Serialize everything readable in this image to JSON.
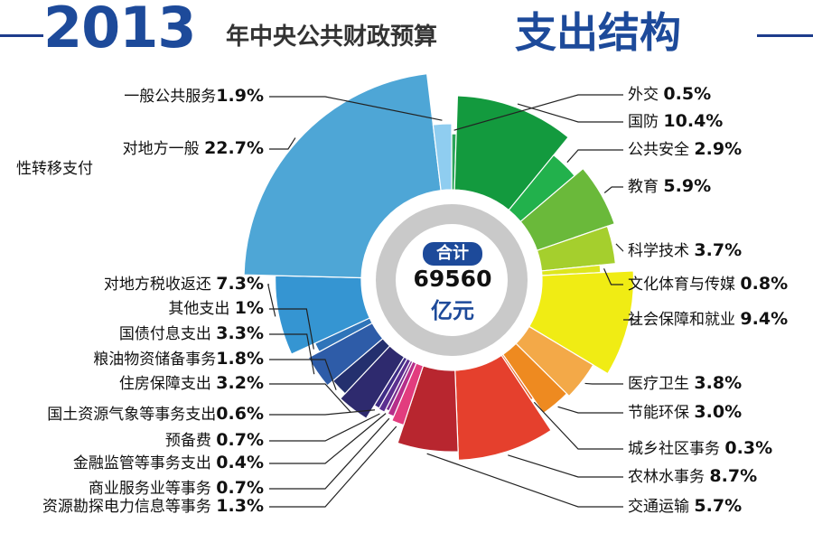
{
  "header": {
    "year": "2013",
    "middle": "年中央公共财政预算",
    "end": "支出结构"
  },
  "center": {
    "badge": "合计",
    "total": "69560",
    "unit": "亿元"
  },
  "chart_data": {
    "type": "pie",
    "title": "2013年中央公共财政预算支出结构",
    "total": "69560",
    "unit": "亿元",
    "slices": [
      {
        "name": "外交",
        "label": "外交",
        "value": 0.5,
        "color": "#2aa55a"
      },
      {
        "name": "国防",
        "label": "国防",
        "value": 10.4,
        "color": "#139a3e"
      },
      {
        "name": "公共安全",
        "label": "公共安全",
        "value": 2.9,
        "color": "#22b14c"
      },
      {
        "name": "教育",
        "label": "教育",
        "value": 5.9,
        "color": "#6ab93a"
      },
      {
        "name": "科学技术",
        "label": "科学技术",
        "value": 3.7,
        "color": "#a5cf2d"
      },
      {
        "name": "文化体育与传媒",
        "label": "文化体育与传媒",
        "value": 0.8,
        "color": "#dde61e"
      },
      {
        "name": "社会保障和就业",
        "label": "社会保障和就业",
        "value": 9.4,
        "color": "#f0ec14"
      },
      {
        "name": "医疗卫生",
        "label": "医疗卫生",
        "value": 3.8,
        "color": "#f3a948"
      },
      {
        "name": "节能环保",
        "label": "节能环保",
        "value": 3.0,
        "color": "#ee8a20"
      },
      {
        "name": "城乡社区事务",
        "label": "城乡社区事务",
        "value": 0.3,
        "color": "#e6672b"
      },
      {
        "name": "农林水事务",
        "label": "农林水事务",
        "value": 8.7,
        "color": "#e5402d"
      },
      {
        "name": "交通运输",
        "label": "交通运输",
        "value": 5.7,
        "color": "#b8262f"
      },
      {
        "name": "资源勘探电力信息等事务",
        "label": "资源勘探电力信息等事务",
        "value": 1.3,
        "color": "#e23c7e"
      },
      {
        "name": "商业服务业等事务",
        "label": "商业服务业等事务",
        "value": 0.7,
        "color": "#b62e8a"
      },
      {
        "name": "金融监管等事务支出",
        "label": "金融监管等事务支出",
        "value": 0.4,
        "color": "#7a2c8f"
      },
      {
        "name": "预备费",
        "label": "预备费",
        "value": 0.7,
        "color": "#5b2f90"
      },
      {
        "name": "国土资源气象等事务支出",
        "label": "国土资源气象等事务支出",
        "value": 0.6,
        "color": "#3f2d86"
      },
      {
        "name": "住房保障支出",
        "label": "住房保障支出",
        "value": 3.2,
        "color": "#2e2a6e"
      },
      {
        "name": "粮油物资储备事务",
        "label": "粮油物资储备事务",
        "value": 1.8,
        "color": "#24306e"
      },
      {
        "name": "国债付息支出",
        "label": "国债付息支出",
        "value": 3.3,
        "color": "#2e5ca8"
      },
      {
        "name": "其他支出",
        "label": "其他支出",
        "value": 1.0,
        "color": "#2f74b9"
      },
      {
        "name": "对地方税收返还",
        "label": "对地方税收返还",
        "value": 7.3,
        "color": "#3595d2"
      },
      {
        "name": "对地方一般性转移支付",
        "label": "对地方一般\n性转移支付",
        "value": 22.7,
        "color": "#4ea6d6"
      },
      {
        "name": "一般公共服务",
        "label": "一般公共服务",
        "value": 1.9,
        "color": "#8fcdf0"
      }
    ],
    "labels": [
      {
        "text": "外交 ",
        "pct": "0.5%"
      },
      {
        "text": "国防 ",
        "pct": "10.4%"
      },
      {
        "text": "公共安全 ",
        "pct": "2.9%"
      },
      {
        "text": "教育 ",
        "pct": "5.9%"
      },
      {
        "text": "科学技术 ",
        "pct": "3.7%"
      },
      {
        "text": "文化体育与传媒 ",
        "pct": "0.8%"
      },
      {
        "text": "社会保障和就业 ",
        "pct": "9.4%"
      },
      {
        "text": "医疗卫生 ",
        "pct": "3.8%"
      },
      {
        "text": "节能环保 ",
        "pct": "3.0%"
      },
      {
        "text": "城乡社区事务 ",
        "pct": "0.3%"
      },
      {
        "text": "农林水事务 ",
        "pct": "8.7%"
      },
      {
        "text": "交通运输 ",
        "pct": "5.7%"
      },
      {
        "text": "资源勘探电力信息等事务 ",
        "pct": "1.3%"
      },
      {
        "text": "商业服务业等事务 ",
        "pct": "0.7%"
      },
      {
        "text": "金融监管等事务支出 ",
        "pct": "0.4%"
      },
      {
        "text": "预备费 ",
        "pct": "0.7%"
      },
      {
        "text": "国土资源气象等事务支出",
        "pct": "0.6%"
      },
      {
        "text": "住房保障支出 ",
        "pct": "3.2%"
      },
      {
        "text": "粮油物资储备事务",
        "pct": "1.8%"
      },
      {
        "text": "国债付息支出 ",
        "pct": "3.3%"
      },
      {
        "text": "其他支出 ",
        "pct": "1%"
      },
      {
        "text": "对地方税收返还 ",
        "pct": "7.3%"
      },
      {
        "text": "对地方一般 ",
        "pct": "22.7%",
        "line2": "性转移支付"
      },
      {
        "text": "一般公共服务",
        "pct": "1.9%"
      }
    ]
  }
}
